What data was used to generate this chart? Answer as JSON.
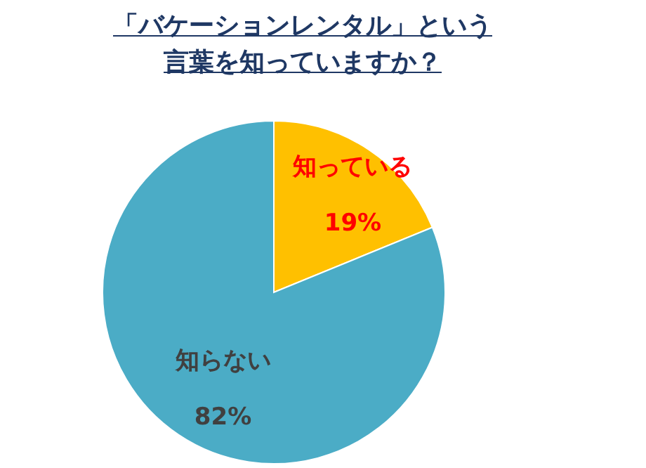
{
  "chart_data": {
    "type": "pie",
    "title": "「バケーションレンタル」という言葉を知っていますか？",
    "categories": [
      "知っている",
      "知らない"
    ],
    "values": [
      19,
      82
    ],
    "value_labels": [
      "19%",
      "82%"
    ],
    "colors": [
      "#ffc000",
      "#4bacc6"
    ]
  }
}
